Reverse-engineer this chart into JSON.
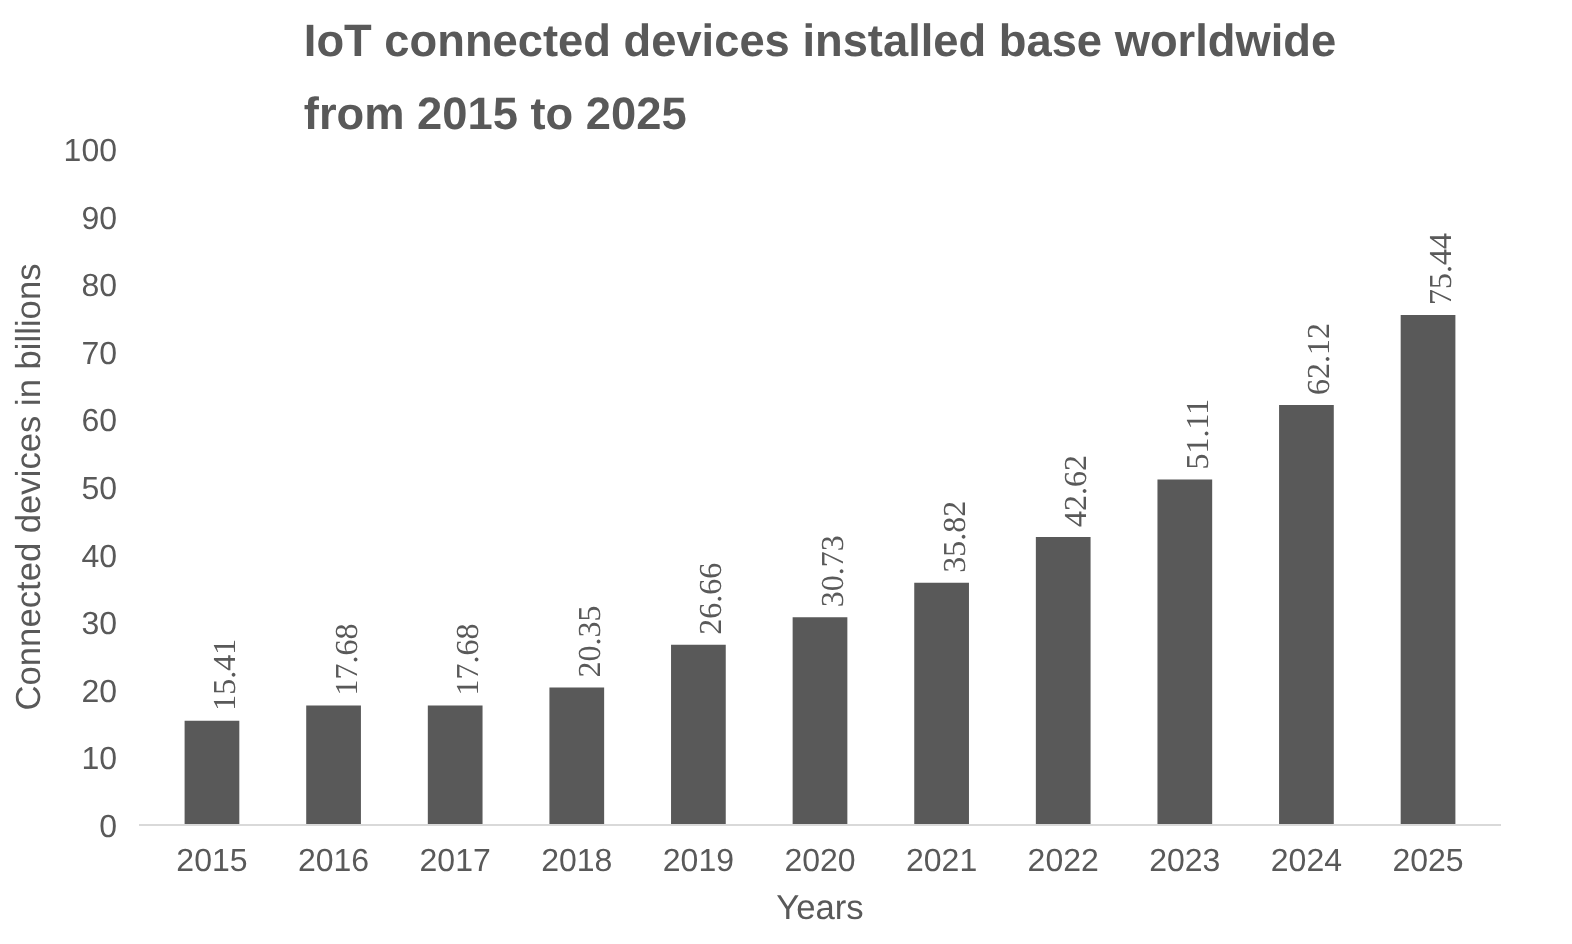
{
  "chart_data": {
    "type": "bar",
    "title": "IoT connected devices installed base worldwide from 2015 to 2025",
    "xlabel": "Years",
    "ylabel": "Connected devices in billions",
    "categories": [
      "2015",
      "2016",
      "2017",
      "2018",
      "2019",
      "2020",
      "2021",
      "2022",
      "2023",
      "2024",
      "2025"
    ],
    "values": [
      15.41,
      17.68,
      17.68,
      20.35,
      26.66,
      30.73,
      35.82,
      42.62,
      51.11,
      62.12,
      75.44
    ],
    "color": "#595959",
    "ylim": [
      0,
      100
    ],
    "yticks": [
      0,
      10,
      20,
      30,
      40,
      50,
      60,
      70,
      80,
      90,
      100
    ],
    "grid": false,
    "data_labels": true
  }
}
